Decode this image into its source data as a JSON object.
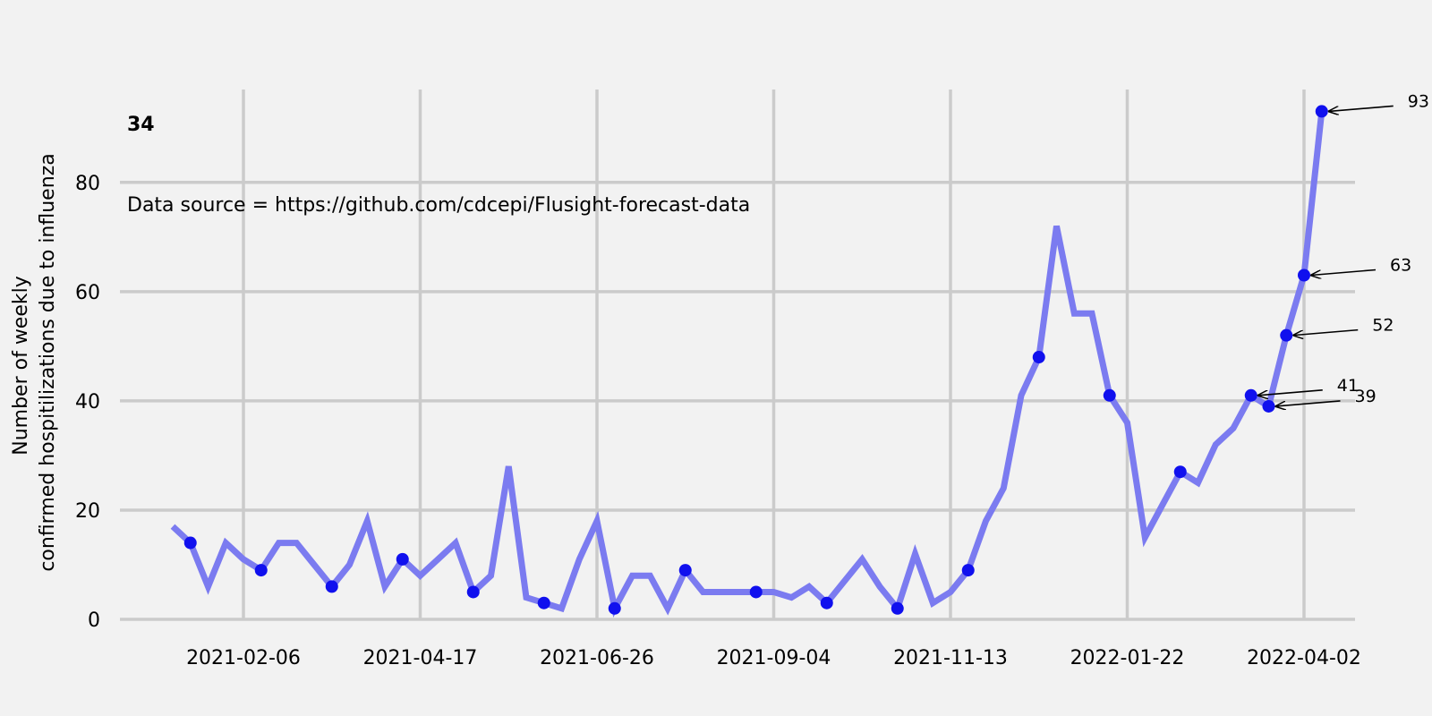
{
  "chart_data": {
    "type": "line",
    "ylabel_lines": [
      "Number of weekly",
      "confirmed hospitilizations due to influenza"
    ],
    "corner_label": "34",
    "source_note": "Data source = https://github.com/cdcepi/Flusight-forecast-data",
    "ylim": [
      0,
      97
    ],
    "yticks": [
      0,
      20,
      40,
      60,
      80
    ],
    "x_start_date": "2021-01-09",
    "x_end_date": "2022-04-02",
    "xticks": [
      "2021-02-06",
      "2021-04-17",
      "2021-06-26",
      "2021-09-04",
      "2021-11-13",
      "2022-01-22",
      "2022-04-02"
    ],
    "grid": true,
    "line_color": "#7b7bf0",
    "marker_color": "#1010ee",
    "series": [
      {
        "values": [
          17,
          14,
          6,
          14,
          11,
          9,
          14,
          14,
          10,
          6,
          10,
          18,
          6,
          11,
          8,
          11,
          14,
          5,
          8,
          28,
          4,
          3,
          2,
          11,
          18,
          2,
          8,
          8,
          2,
          9,
          5,
          5,
          5,
          5,
          5,
          4,
          6,
          3,
          7,
          11,
          6,
          2,
          12,
          3,
          5,
          9,
          18,
          24,
          41,
          48,
          72,
          56,
          56,
          41,
          36,
          15,
          21,
          27,
          25,
          32,
          35,
          41,
          39,
          52,
          63,
          93
        ],
        "marker_indices": [
          1,
          5,
          9,
          13,
          17,
          21,
          25,
          29,
          33,
          37,
          41,
          45,
          49,
          53,
          57,
          61,
          62,
          63,
          64,
          65
        ]
      }
    ],
    "annotations": [
      {
        "label": "93",
        "index": 65
      },
      {
        "label": "63",
        "index": 64
      },
      {
        "label": "52",
        "index": 63
      },
      {
        "label": "41",
        "index": 61
      },
      {
        "label": "39",
        "index": 62
      }
    ]
  }
}
